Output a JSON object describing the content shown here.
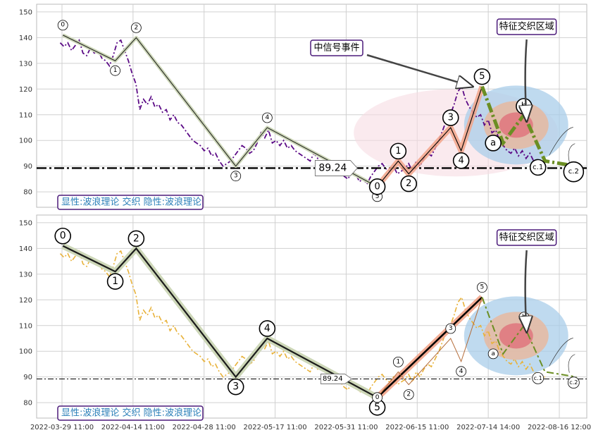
{
  "chart_data": [
    {
      "type": "line",
      "panel": "top",
      "x_ticks": [
        "2022-03-29 11:00",
        "2022-04-14 11:00",
        "2022-04-28 11:00",
        "2022-05-17 11:00",
        "2022-05-31 11:00",
        "2022-06-15 11:00",
        "2022-07-14 14:00",
        "2022-08-16 12:00"
      ],
      "y_ticks": [
        80,
        90,
        100,
        110,
        120,
        130,
        140,
        150
      ],
      "ylim": [
        74,
        153
      ],
      "grid": true,
      "series": [
        {
          "style": "dash-dot",
          "color": "#5b0a86",
          "values": [
            138,
            136.5,
            138,
            135,
            137,
            139,
            134,
            133,
            136,
            134,
            135,
            132,
            131,
            129,
            133,
            138,
            139,
            135,
            131,
            126,
            122,
            112,
            116,
            114,
            117,
            113,
            114,
            111,
            112,
            108,
            110,
            107,
            106,
            104,
            102,
            100,
            99,
            98,
            96,
            97,
            94,
            95,
            92,
            90,
            91,
            92,
            94,
            96,
            98,
            97,
            95,
            96,
            99,
            103,
            101,
            104,
            99,
            100,
            98,
            100,
            97,
            98,
            96,
            95,
            94,
            93,
            92,
            95,
            93,
            94,
            92,
            91,
            90,
            89,
            88,
            86,
            85,
            88,
            87,
            84,
            85,
            83,
            86,
            88,
            90,
            91,
            89,
            88,
            90,
            87,
            88,
            89,
            91,
            88,
            92,
            90,
            93,
            95,
            94,
            97,
            100,
            104,
            108,
            110,
            114,
            119,
            121,
            116,
            113,
            111,
            109,
            110,
            106,
            108,
            103,
            104,
            100,
            98,
            96,
            95,
            97,
            94,
            96,
            93,
            95,
            92,
            91,
            90,
            90
          ]
        }
      ],
      "wave_degree_1": {
        "labels": [
          "0",
          "1",
          "2",
          "3",
          "4",
          "5"
        ],
        "points": [
          [
            0.05,
            141
          ],
          [
            0.15,
            131
          ],
          [
            0.19,
            140
          ],
          [
            0.38,
            90
          ],
          [
            0.44,
            105
          ],
          [
            0.65,
            82
          ]
        ]
      },
      "wave_degree_2": {
        "labels": [
          "0",
          "1",
          "2",
          "3",
          "4",
          "5",
          "a",
          "b",
          "c.1",
          "c.2"
        ],
        "points": [
          [
            0.65,
            82
          ],
          [
            0.69,
            92
          ],
          [
            0.71,
            87
          ],
          [
            0.79,
            105
          ],
          [
            0.81,
            96
          ],
          [
            0.85,
            121
          ],
          [
            0.89,
            99
          ],
          [
            0.93,
            110
          ],
          [
            0.97,
            92
          ],
          [
            1.03,
            90
          ]
        ]
      },
      "horizontal_line": 89.24,
      "price_tag": "89.24",
      "annotations": {
        "signal_event": "中信号事件",
        "feature_zone": "特征交织区域"
      },
      "caption": "显性:波浪理论 交织 隐性:波浪理论"
    },
    {
      "type": "line",
      "panel": "bottom",
      "x_ticks": [
        "2022-03-29 11:00",
        "2022-04-14 11:00",
        "2022-04-28 11:00",
        "2022-05-17 11:00",
        "2022-05-31 11:00",
        "2022-06-15 11:00",
        "2022-07-14 14:00",
        "2022-08-16 12:00"
      ],
      "y_ticks": [
        80,
        90,
        100,
        110,
        120,
        130,
        140,
        150
      ],
      "ylim": [
        74,
        153
      ],
      "grid": true,
      "series": [
        {
          "style": "dash-dot",
          "color": "#e8b23a",
          "values": [
            138,
            136.5,
            138,
            135,
            137,
            139,
            134,
            133,
            136,
            134,
            135,
            132,
            131,
            129,
            133,
            138,
            139,
            135,
            131,
            126,
            122,
            112,
            116,
            114,
            117,
            113,
            114,
            111,
            112,
            108,
            110,
            107,
            106,
            104,
            102,
            100,
            99,
            98,
            96,
            97,
            94,
            95,
            92,
            90,
            91,
            92,
            94,
            96,
            98,
            97,
            95,
            96,
            99,
            103,
            101,
            104,
            99,
            100,
            98,
            100,
            97,
            98,
            96,
            95,
            94,
            93,
            92,
            95,
            93,
            94,
            92,
            91,
            90,
            89,
            88,
            86,
            85,
            88,
            87,
            84,
            85,
            83,
            86,
            88,
            90,
            91,
            89,
            88,
            90,
            87,
            88,
            89,
            91,
            88,
            92,
            90,
            93,
            95,
            94,
            97,
            100,
            104,
            108,
            110,
            114,
            119,
            121,
            116,
            113,
            111,
            109,
            110,
            106,
            108,
            103,
            104,
            100,
            98,
            96,
            95,
            97,
            94,
            96,
            93,
            95,
            92,
            91,
            90,
            90
          ]
        }
      ],
      "wave_degree_1": {
        "labels": [
          "0",
          "1",
          "2",
          "3",
          "4",
          "5"
        ],
        "points": [
          [
            0.05,
            141
          ],
          [
            0.15,
            131
          ],
          [
            0.19,
            140
          ],
          [
            0.38,
            90
          ],
          [
            0.44,
            105
          ],
          [
            0.65,
            82
          ]
        ]
      },
      "wave_degree_2": {
        "labels": [
          "0",
          "1",
          "2",
          "3",
          "4",
          "5",
          "a",
          "b",
          "c.1",
          "c.2"
        ],
        "points": [
          [
            0.65,
            82
          ],
          [
            0.69,
            92
          ],
          [
            0.71,
            87
          ],
          [
            0.79,
            105
          ],
          [
            0.81,
            96
          ],
          [
            0.85,
            121
          ],
          [
            0.89,
            99
          ],
          [
            0.93,
            110
          ],
          [
            0.97,
            92
          ],
          [
            1.03,
            90
          ]
        ]
      },
      "horizontal_line": 89.24,
      "price_tag": "89.24",
      "annotations": {
        "feature_zone": "特征交织区域"
      },
      "caption": "显性:波浪理论 交织 隐性:波浪理论"
    }
  ],
  "colors": {
    "grid": "#d0d0d0",
    "impulse_fill": "#cdd7b8",
    "impulse_line": "#1b1b1b",
    "wave2_fill": "#f2a58a",
    "corrective": "#6b8e23",
    "ellipse_outer": "#a9cde9",
    "ellipse_mid": "#e6b9a0",
    "ellipse_inner": "#e0707a",
    "signal_ellipse": "#f7dce3",
    "label_border": "#4b1a7a",
    "label_text_red": "#c0392b",
    "label_text_blue": "#2a7fb8"
  }
}
